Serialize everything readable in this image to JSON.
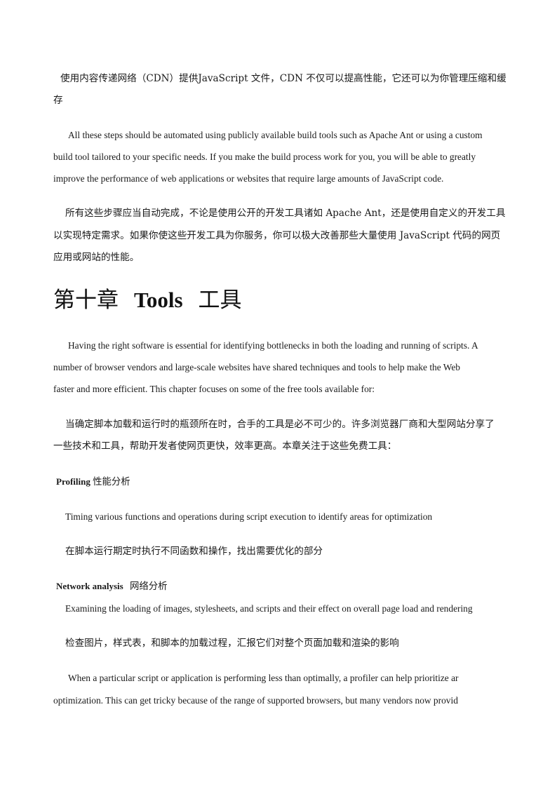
{
  "paragraphs": {
    "cdn_cn": {
      "l1": "使用内容传递网络（CDN）提供JavaScript 文件，CDN 不仅可以提高性能，它还可以为你管理压缩和缓",
      "l2": "存"
    },
    "automate_en": {
      "l1": "All these steps should be automated using publicly available build tools such as Apache Ant or using a custom",
      "l2": "build tool tailored to your specific needs. If you make the build process work for you, you will be able to greatly",
      "l3": "improve the performance of web applications or websites that require large amounts of JavaScript code."
    },
    "automate_cn": {
      "l1": "所有这些步骤应当自动完成，不论是使用公开的开发工具诸如 Apache Ant，还是使用自定义的开发工具",
      "l2": "以实现特定需求。如果你使这些开发工具为你服务，你可以极大改善那些大量使用 JavaScript 代码的网页",
      "l3": "应用或网站的性能。"
    },
    "intro_en": {
      "l1": "Having the right software is essential for identifying bottlenecks in both the loading and running of scripts. A",
      "l2": "number of browser vendors and large-scale websites have shared techniques and tools to help make the Web",
      "l3": "faster and more efficient. This chapter focuses on some of the free tools available for:"
    },
    "intro_cn": {
      "l1": "当确定脚本加载和运行时的瓶颈所在时，合手的工具是必不可少的。许多浏览器厂商和大型网站分享了",
      "l2": "一些技术和工具，帮助开发者使网页更快，效率更高。本章关注于这些免费工具："
    },
    "profiling_desc_en": "Timing various functions and operations during script execution to identify areas for optimization",
    "profiling_desc_cn": "在脚本运行期定时执行不同函数和操作，找出需要优化的部分",
    "network_desc_en": "Examining the loading of images, stylesheets, and scripts and their effect on overall page load and rendering",
    "network_desc_cn": "检查图片，样式表，和脚本的加载过程，汇报它们对整个页面加载和渲染的影响",
    "profiler_en": {
      "l1": "When a particular script or application is performing less than optimally, a profiler can help prioritize ar",
      "l2": "optimization. This can get tricky because of the range of supported browsers, but many vendors now provid"
    }
  },
  "chapter": {
    "prefix": "第十章",
    "title_en": "Tools",
    "title_cn": "工具"
  },
  "headings": {
    "profiling_en": "Profiling",
    "profiling_cn": "性能分析",
    "network_en": "Network analysis",
    "network_cn": "网络分析"
  }
}
